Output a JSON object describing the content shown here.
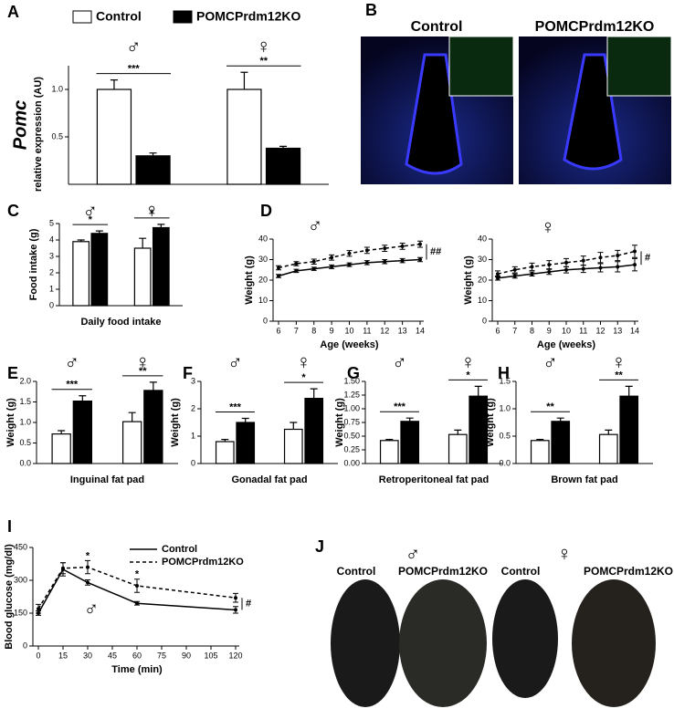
{
  "chart_data": [
    {
      "type": "bar",
      "panel": "A",
      "ylabel_main": "Pomc",
      "ylabel": "relative expression (AU)",
      "categories": [
        "♂",
        "♀"
      ],
      "series": [
        {
          "name": "Control",
          "color": "#ffffff",
          "values": [
            1.0,
            1.0
          ],
          "errors": [
            0.1,
            0.18
          ]
        },
        {
          "name": "POMCPrdm12KO",
          "color": "#000000",
          "values": [
            0.3,
            0.38
          ],
          "errors": [
            0.03,
            0.02
          ]
        }
      ],
      "significance": [
        "***",
        "**"
      ],
      "ylim": [
        0,
        1.25
      ],
      "yticks": [
        0.5,
        {
          "value": 1,
          "label": "1.0"
        }
      ],
      "legend": "top"
    },
    {
      "type": "bar",
      "panel": "C",
      "ylabel": "Food intake (g)",
      "xlabel": "Daily food intake",
      "categories": [
        "♂",
        "♀"
      ],
      "series": [
        {
          "color": "#ffffff",
          "values": [
            3.9,
            3.5
          ],
          "errors": [
            0.1,
            0.6
          ]
        },
        {
          "color": "#000000",
          "values": [
            4.4,
            4.75
          ],
          "errors": [
            0.15,
            0.2
          ]
        }
      ],
      "significance": [
        "*",
        "*"
      ],
      "ylim": [
        0,
        5
      ],
      "yticks": [
        0,
        1,
        2,
        3,
        4,
        5
      ]
    },
    {
      "type": "line",
      "panel": "D",
      "title": "♂",
      "ylabel": "Weight (g)",
      "xlabel": "Age (weeks)",
      "x": [
        6,
        7,
        8,
        9,
        10,
        11,
        12,
        13,
        14
      ],
      "xlim": [
        6,
        14
      ],
      "xticks": [
        6,
        7,
        8,
        9,
        10,
        11,
        12,
        13,
        14
      ],
      "ylim": [
        0,
        40
      ],
      "yticks": [
        0,
        10,
        20,
        30,
        40
      ],
      "series": [
        {
          "color": "#000000",
          "linestyle": "solid",
          "values": [
            22,
            24.5,
            25.5,
            26.5,
            27.5,
            28.5,
            29,
            29.5,
            30
          ],
          "errors": [
            0.8,
            0.8,
            0.8,
            0.9,
            0.9,
            1,
            1,
            1,
            1
          ]
        },
        {
          "color": "#000000",
          "linestyle": "dashed",
          "values": [
            26,
            28,
            29,
            31,
            33,
            34.5,
            35.5,
            36.5,
            37.5
          ],
          "errors": [
            1,
            1,
            1.2,
            1.3,
            1.4,
            1.5,
            1.5,
            1.5,
            1.5
          ]
        }
      ],
      "significance": "##"
    },
    {
      "type": "line",
      "title": "♀",
      "ylabel": "Weight (g)",
      "xlabel": "Age (weeks)",
      "x": [
        6,
        7,
        8,
        9,
        10,
        11,
        12,
        13,
        14
      ],
      "xlim": [
        6,
        14
      ],
      "xticks": [
        6,
        7,
        8,
        9,
        10,
        11,
        12,
        13,
        14
      ],
      "ylim": [
        0,
        40
      ],
      "yticks": [
        0,
        10,
        20,
        30,
        40
      ],
      "series": [
        {
          "color": "#000000",
          "linestyle": "solid",
          "values": [
            21,
            22,
            23,
            24,
            25,
            25.5,
            26,
            26.5,
            27.5
          ],
          "errors": [
            1,
            1,
            1,
            1.2,
            1.5,
            1.8,
            2,
            2.5,
            3
          ]
        },
        {
          "color": "#000000",
          "linestyle": "dashed",
          "values": [
            23,
            25,
            26.5,
            27.5,
            28.5,
            29.5,
            31,
            32,
            34
          ],
          "errors": [
            1.5,
            1.5,
            1.8,
            2,
            2,
            2.2,
            2.5,
            2.5,
            3
          ]
        }
      ],
      "significance": "#"
    },
    {
      "type": "bar",
      "panel": "E",
      "ylabel": "Weight (g)",
      "xlabel": "Inguinal fat pad",
      "categories": [
        "♂",
        "♀"
      ],
      "series": [
        {
          "color": "#ffffff",
          "values": [
            0.72,
            1.02
          ],
          "errors": [
            0.08,
            0.22
          ]
        },
        {
          "color": "#000000",
          "values": [
            1.52,
            1.78
          ],
          "errors": [
            0.13,
            0.2
          ]
        }
      ],
      "significance": [
        "***",
        "**"
      ],
      "ylim": [
        0,
        2
      ],
      "yticks": [
        {
          "value": 0,
          "label": "0.0"
        },
        0.5,
        {
          "value": 1,
          "label": "1.0"
        },
        1.5,
        {
          "value": 2,
          "label": "2.0"
        }
      ]
    },
    {
      "type": "bar",
      "panel": "F",
      "ylabel": "Weight (g)",
      "xlabel": "Gonadal fat pad",
      "categories": [
        "♂",
        "♀"
      ],
      "series": [
        {
          "color": "#ffffff",
          "values": [
            0.8,
            1.25
          ],
          "errors": [
            0.08,
            0.25
          ]
        },
        {
          "color": "#000000",
          "values": [
            1.5,
            2.38
          ],
          "errors": [
            0.15,
            0.35
          ]
        }
      ],
      "significance": [
        "***",
        "*"
      ],
      "ylim": [
        0,
        3
      ],
      "yticks": [
        0,
        1,
        2,
        3
      ]
    },
    {
      "type": "bar",
      "panel": "G",
      "ylabel": "Weight (g)",
      "xlabel": "Retroperitoneal fat pad",
      "categories": [
        "♂",
        "♀"
      ],
      "series": [
        {
          "color": "#ffffff",
          "values": [
            0.42,
            0.53
          ],
          "errors": [
            0.02,
            0.08
          ]
        },
        {
          "color": "#000000",
          "values": [
            0.77,
            1.23
          ],
          "errors": [
            0.06,
            0.18
          ]
        }
      ],
      "significance": [
        "***",
        "*"
      ],
      "ylim": [
        0,
        1.5
      ],
      "yticks": [
        {
          "value": 0,
          "label": "0.00"
        },
        0.25,
        {
          "value": 0.5,
          "label": "0.50"
        },
        0.75,
        {
          "value": 1,
          "label": "1.00"
        },
        1.25,
        {
          "value": 1.5,
          "label": "1.50"
        }
      ]
    },
    {
      "type": "bar",
      "panel": "H",
      "ylabel": "Weight (g)",
      "xlabel": "Brown fat pad",
      "categories": [
        "♂",
        "♀"
      ],
      "series": [
        {
          "color": "#ffffff",
          "values": [
            0.42,
            0.53
          ],
          "errors": [
            0.02,
            0.08
          ]
        },
        {
          "color": "#000000",
          "values": [
            0.77,
            1.23
          ],
          "errors": [
            0.06,
            0.18
          ]
        }
      ],
      "significance": [
        "**",
        "**"
      ],
      "ylim": [
        0,
        1.5
      ],
      "yticks": [
        {
          "value": 0,
          "label": "0.0"
        },
        0.5,
        {
          "value": 1,
          "label": "1.0"
        },
        1.5
      ]
    },
    {
      "type": "line",
      "panel": "I",
      "ylabel": "Blood glucose (mg/dl)",
      "xlabel": "Time (min)",
      "annotation": "♂",
      "x": [
        0,
        15,
        30,
        60,
        120
      ],
      "xlim": [
        0,
        120
      ],
      "xticks": [
        0,
        15,
        30,
        45,
        60,
        75,
        90,
        105,
        120
      ],
      "ylim": [
        0,
        450
      ],
      "yticks": [
        0,
        150,
        300,
        450
      ],
      "series": [
        {
          "name": "Control",
          "color": "#000000",
          "linestyle": "solid",
          "values": [
            150,
            350,
            290,
            195,
            165
          ],
          "errors": [
            10,
            30,
            12,
            8,
            15
          ]
        },
        {
          "name": "POMCPrdm12KO",
          "color": "#000000",
          "linestyle": "dashed",
          "values": [
            170,
            355,
            360,
            275,
            220
          ],
          "errors": [
            20,
            25,
            30,
            30,
            20
          ],
          "point_labels": [
            null,
            null,
            "*",
            "*",
            null
          ]
        }
      ],
      "significance": "#",
      "legend": "top-right"
    }
  ],
  "images": [
    {
      "panel": "B",
      "labels": [
        "Control",
        "POMCPrdm12KO"
      ]
    },
    {
      "panel": "J",
      "labels": [
        "Control",
        "POMCPrdm12KO",
        "Control",
        "POMCPrdm12KO"
      ],
      "symbols": [
        "♂",
        "♀"
      ]
    }
  ]
}
